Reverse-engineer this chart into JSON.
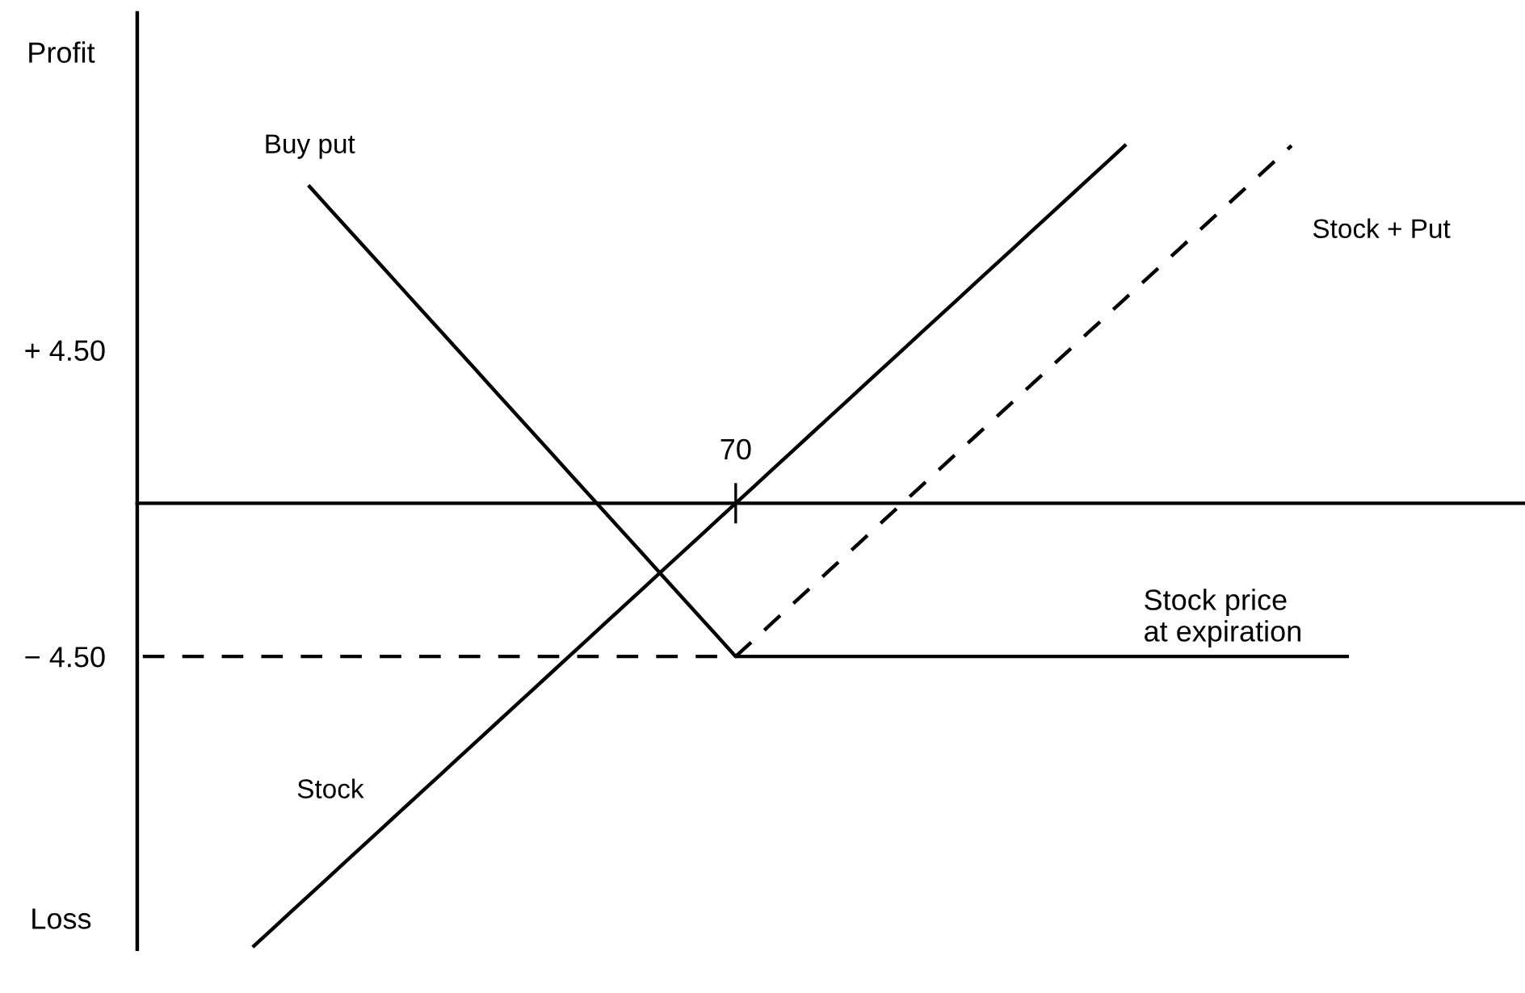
{
  "chart_data": {
    "type": "line",
    "xlabel": "Stock price\nat expiration",
    "annotations": [
      "Profit",
      "Loss"
    ],
    "categories": [
      null,
      null,
      null,
      null,
      null,
      null,
      null,
      null,
      null,
      null,
      null,
      null,
      null,
      null,
      null,
      null,
      null,
      null,
      null,
      null,
      null,
      null,
      null,
      null,
      null,
      null,
      null,
      null,
      null,
      null,
      null,
      null,
      "70",
      null,
      null,
      null,
      null,
      null,
      null,
      null,
      null,
      null,
      null,
      null,
      null,
      null,
      null,
      null,
      null,
      null,
      null,
      null,
      null,
      null,
      null,
      null,
      null,
      null,
      null,
      null,
      null,
      null,
      null,
      null,
      null,
      null,
      null,
      null,
      null,
      null,
      null,
      null,
      null,
      null,
      null
    ],
    "series": [
      {
        "name": "Buy put",
        "color": "#000000",
        "line_style": "solid",
        "values": [
          null,
          null,
          null,
          null,
          null,
          null,
          null,
          null,
          null,
          9.3,
          8.7,
          8.1,
          7.5,
          6.9,
          6.3,
          5.7,
          5.1,
          4.5,
          3.9,
          3.3,
          2.7,
          2.1,
          1.5,
          0.9,
          0.3,
          -0.3,
          -0.9,
          -1.5,
          -2.1,
          -2.7,
          -3.3,
          -3.9,
          -4.5,
          -4.5,
          -4.5,
          -4.5,
          -4.5,
          -4.5,
          -4.5,
          -4.5,
          -4.5,
          -4.5,
          -4.5,
          -4.5,
          -4.5,
          -4.5,
          -4.5,
          -4.5,
          -4.5,
          -4.5,
          -4.5,
          -4.5,
          -4.5,
          -4.5,
          -4.5,
          -4.5,
          -4.5,
          -4.5,
          -4.5,
          -4.5,
          -4.5,
          -4.5,
          -4.5,
          -4.5,
          -4.5,
          -4.5,
          null,
          null,
          null,
          null,
          null,
          null,
          null,
          null,
          null
        ]
      },
      {
        "name": "Stock",
        "color": "#000000",
        "line_style": "solid",
        "values": [
          null,
          null,
          null,
          null,
          null,
          null,
          -13,
          -12.5,
          -12,
          -11.5,
          -11,
          -10.5,
          -10,
          -9.5,
          -9,
          -8.5,
          -8,
          -7.5,
          -7,
          -6.5,
          -6,
          -5.5,
          -5,
          -4.5,
          -4,
          -3.5,
          -3,
          -2.5,
          -2,
          -1.5,
          -1,
          -0.5,
          0,
          0.5,
          1,
          1.5,
          2,
          2.5,
          3,
          3.5,
          4,
          4.5,
          5,
          5.5,
          6,
          6.5,
          7,
          7.5,
          8,
          8.5,
          9,
          9.5,
          10,
          10.5,
          null,
          null,
          null,
          null,
          null,
          null,
          null,
          null,
          null,
          null,
          null,
          null,
          null,
          null,
          null,
          null,
          null,
          null,
          null,
          null,
          null
        ]
      },
      {
        "name": "Stock + Put",
        "color": "#000000",
        "line_style": "dashed",
        "values": [
          -4.5,
          -4.5,
          -4.5,
          -4.5,
          -4.5,
          -4.5,
          -4.5,
          -4.5,
          -4.5,
          -4.5,
          -4.5,
          -4.5,
          -4.5,
          -4.5,
          -4.5,
          -4.5,
          -4.5,
          -4.5,
          -4.5,
          -4.5,
          -4.5,
          -4.5,
          -4.5,
          -4.5,
          -4.5,
          -4.5,
          -4.5,
          -4.5,
          -4.5,
          -4.5,
          -4.5,
          -4.5,
          -4.5,
          -4,
          -3.5,
          -3,
          -2.5,
          -2,
          -1.5,
          -1,
          -0.5,
          0,
          0.5,
          1,
          1.5,
          2,
          2.5,
          3,
          3.5,
          4,
          4.5,
          5,
          5.5,
          6,
          6.5,
          7,
          7.5,
          8,
          8.5,
          9,
          9.5,
          10,
          10.5,
          null,
          null,
          null,
          null,
          null,
          null,
          null,
          null,
          null,
          null,
          null,
          null
        ]
      }
    ],
    "ylim": [
      -13.1,
      14.4
    ],
    "yticks": [
      {
        "value": 4.5,
        "label": "+ 4.50"
      },
      {
        "value": -4.5,
        "label": "− 4.50"
      }
    ],
    "grid": false,
    "legend": false
  }
}
